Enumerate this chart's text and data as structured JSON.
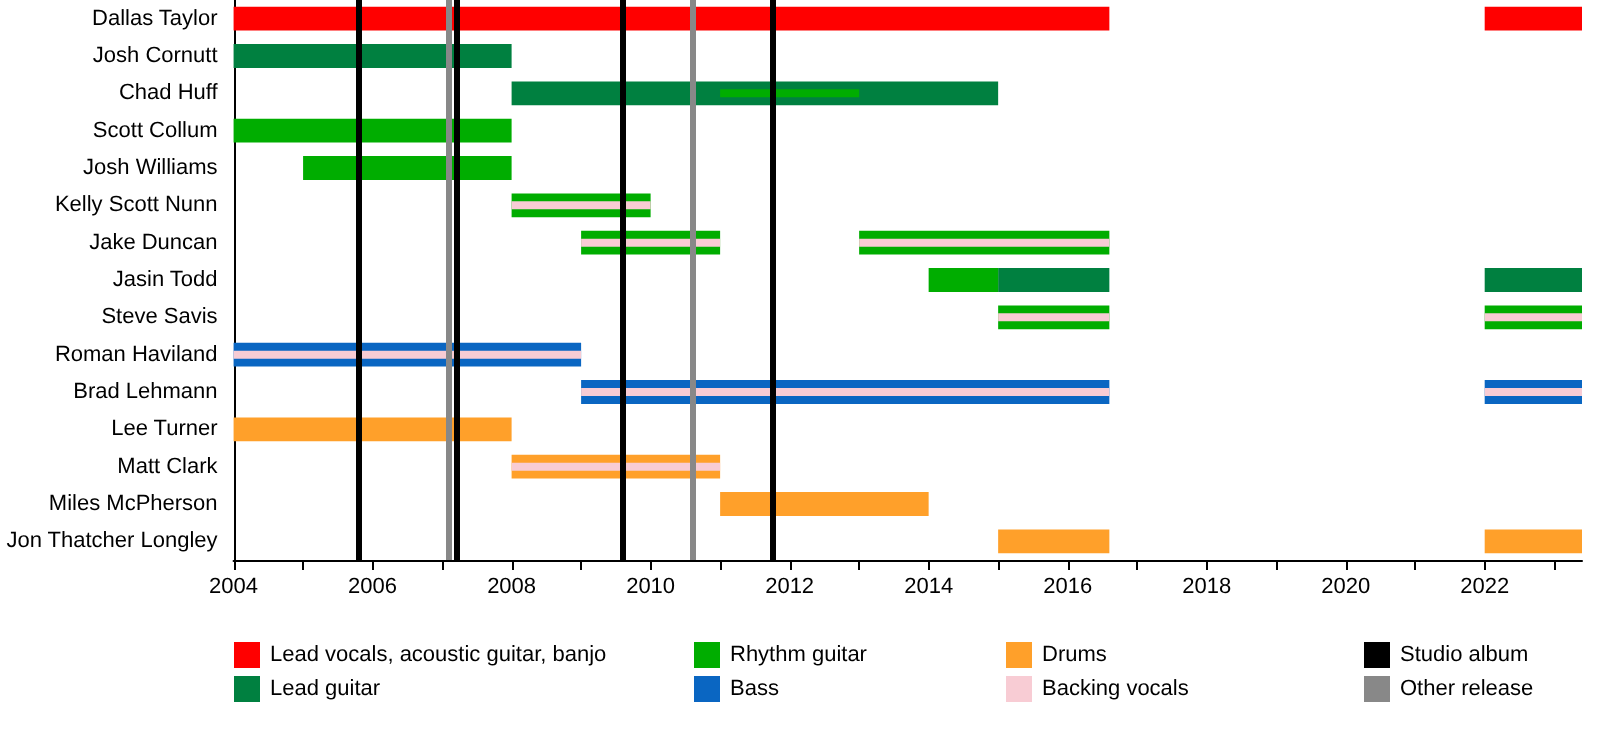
{
  "chart_data": {
    "type": "bar",
    "orientation": "horizontal",
    "categories": [
      "Dallas Taylor",
      "Josh Cornutt",
      "Chad Huff",
      "Scott Collum",
      "Josh Williams",
      "Kelly Scott Nunn",
      "Jake Duncan",
      "Jasin Todd",
      "Steve Savis",
      "Roman Haviland",
      "Brad Lehmann",
      "Lee Turner",
      "Matt Clark",
      "Miles McPherson",
      "Jon Thatcher Longley"
    ],
    "series": [
      {
        "name": "Lead vocals, acoustic guitar, banjo",
        "color": "#ff0000",
        "base": [
          2004,
          null,
          null,
          null,
          null,
          null,
          null,
          null,
          null,
          null,
          null,
          null,
          null,
          null,
          null
        ],
        "values": [
          12.6,
          null,
          null,
          null,
          null,
          null,
          null,
          null,
          null,
          null,
          null,
          null,
          null,
          null,
          null
        ]
      },
      {
        "name": "Lead guitar",
        "color": "#008040",
        "base": [
          null,
          2004,
          2008,
          null,
          null,
          null,
          null,
          2015,
          null,
          null,
          null,
          null,
          null,
          null,
          null
        ],
        "values": [
          null,
          4,
          7,
          null,
          null,
          null,
          null,
          1.6,
          null,
          null,
          null,
          null,
          null,
          null,
          null
        ]
      },
      {
        "name": "Rhythm guitar",
        "color": "#00ad00",
        "base": [
          null,
          null,
          2011,
          2004,
          2005,
          2008,
          2009,
          2014,
          2015,
          null,
          null,
          null,
          null,
          null,
          null
        ],
        "values": [
          null,
          null,
          2,
          4,
          3,
          2,
          2,
          1,
          1.6,
          null,
          null,
          null,
          null,
          null,
          null
        ]
      },
      {
        "name": "Bass",
        "color": "#0a66c2",
        "base": [
          null,
          null,
          null,
          null,
          null,
          null,
          null,
          null,
          null,
          2004,
          2009,
          null,
          null,
          null,
          null
        ],
        "values": [
          null,
          null,
          null,
          null,
          null,
          null,
          null,
          null,
          null,
          5,
          7.6,
          null,
          null,
          null,
          null
        ]
      },
      {
        "name": "Drums",
        "color": "#ffa02a",
        "base": [
          null,
          null,
          null,
          null,
          null,
          null,
          null,
          null,
          null,
          null,
          null,
          2004,
          2008,
          2011,
          2015
        ],
        "values": [
          null,
          null,
          null,
          null,
          null,
          null,
          null,
          null,
          null,
          null,
          null,
          4,
          3,
          3,
          1.6
        ]
      },
      {
        "name": "Backing vocals",
        "color": "#f8ccd4",
        "base": [
          null,
          null,
          null,
          null,
          null,
          2008,
          2009,
          null,
          2015,
          2004,
          2009,
          null,
          2008,
          null,
          null
        ],
        "values": [
          null,
          null,
          null,
          null,
          null,
          2,
          2,
          null,
          1.6,
          5,
          7.6,
          null,
          3,
          null,
          null
        ]
      },
      {
        "color": "#ff0000",
        "base": [
          2022,
          null,
          null,
          null,
          null,
          null,
          null,
          null,
          null,
          null,
          null,
          null,
          null,
          null,
          null
        ],
        "values": [
          1.4,
          null,
          null,
          null,
          null,
          null,
          null,
          null,
          null,
          null,
          null,
          null,
          null,
          null,
          null
        ]
      },
      {
        "color": "#008040",
        "base": [
          null,
          null,
          null,
          null,
          null,
          null,
          null,
          2022,
          null,
          null,
          null,
          null,
          null,
          null,
          null
        ],
        "values": [
          null,
          null,
          null,
          null,
          null,
          null,
          null,
          1.4,
          null,
          null,
          null,
          null,
          null,
          null,
          null
        ]
      },
      {
        "color": "#00ad00",
        "base": [
          null,
          null,
          null,
          null,
          null,
          null,
          2013,
          null,
          2022,
          null,
          null,
          null,
          null,
          null,
          null
        ],
        "values": [
          null,
          null,
          null,
          null,
          null,
          null,
          3.6,
          null,
          1.4,
          null,
          null,
          null,
          null,
          null,
          null
        ]
      },
      {
        "color": "#0a66c2",
        "base": [
          null,
          null,
          null,
          null,
          null,
          null,
          null,
          null,
          null,
          null,
          2022,
          null,
          null,
          null,
          null
        ],
        "values": [
          null,
          null,
          null,
          null,
          null,
          null,
          null,
          null,
          null,
          null,
          1.4,
          null,
          null,
          null,
          null
        ]
      },
      {
        "color": "#ffa02a",
        "base": [
          null,
          null,
          null,
          null,
          null,
          null,
          null,
          null,
          null,
          null,
          null,
          null,
          null,
          null,
          2022
        ],
        "values": [
          null,
          null,
          null,
          null,
          null,
          null,
          null,
          null,
          null,
          null,
          null,
          null,
          null,
          null,
          1.4
        ]
      },
      {
        "color": "#f8ccd4",
        "base": [
          null,
          null,
          null,
          null,
          null,
          null,
          2013,
          null,
          2022,
          null,
          2022,
          null,
          null,
          null,
          null
        ],
        "values": [
          null,
          null,
          null,
          null,
          null,
          null,
          3.6,
          null,
          1.4,
          null,
          1.4,
          null,
          null,
          null,
          null
        ]
      }
    ],
    "xlim": [
      2004,
      2023.4
    ],
    "xticks": [
      2004,
      {
        "value": 2005,
        "label": null
      },
      2006,
      {
        "value": 2007,
        "label": null
      },
      2008,
      {
        "value": 2009,
        "label": null
      },
      2010,
      {
        "value": 2011,
        "label": null
      },
      2012,
      {
        "value": 2013,
        "label": null
      },
      2014,
      {
        "value": 2015,
        "label": null
      },
      2016,
      {
        "value": 2017,
        "label": null
      },
      2018,
      {
        "value": 2019,
        "label": null
      },
      2020,
      {
        "value": 2021,
        "label": null
      },
      2022,
      {
        "value": 2023,
        "label": null
      }
    ],
    "ref_lines": [
      {
        "axis": "x",
        "value": 2005.8,
        "label": "Studio album",
        "color": "#000000"
      },
      {
        "axis": "x",
        "value": 2007.2,
        "color": "#000000"
      },
      {
        "axis": "x",
        "value": 2009.6,
        "color": "#000000"
      },
      {
        "axis": "x",
        "value": 2011.75,
        "color": "#000000"
      },
      {
        "axis": "x",
        "value": 2007.1,
        "label": "Other release",
        "color": "#888888"
      },
      {
        "axis": "x",
        "value": 2010.6,
        "color": "#888888"
      }
    ],
    "legend": "bottom"
  }
}
